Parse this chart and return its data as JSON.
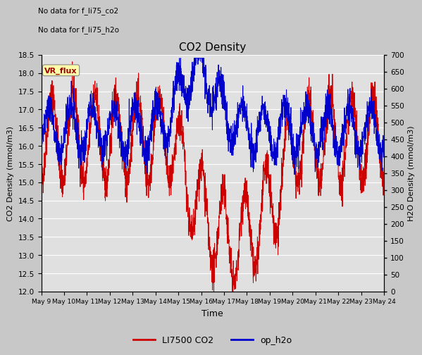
{
  "title": "CO2 Density",
  "xlabel": "Time",
  "ylabel_left": "CO2 Density (mmol/m3)",
  "ylabel_right": "H2O Density (mmol/m3)",
  "text_no_data_1": "No data for f_li75_co2",
  "text_no_data_2": "No data for f_li75_h2o",
  "vr_flux_label": "VR_flux",
  "ylim_left": [
    12.0,
    18.5
  ],
  "ylim_right": [
    0,
    700
  ],
  "yticks_left": [
    12.0,
    12.5,
    13.0,
    13.5,
    14.0,
    14.5,
    15.0,
    15.5,
    16.0,
    16.5,
    17.0,
    17.5,
    18.0,
    18.5
  ],
  "yticks_right": [
    0,
    50,
    100,
    150,
    200,
    250,
    300,
    350,
    400,
    450,
    500,
    550,
    600,
    650,
    700
  ],
  "xtick_labels": [
    "May 9",
    "May 10",
    "May 11",
    "May 12",
    "May 13",
    "May 14",
    "May 15",
    "May 16",
    "May 17",
    "May 18",
    "May 19",
    "May 20",
    "May 21",
    "May 22",
    "May 23",
    "May 24"
  ],
  "color_co2": "#cc0000",
  "color_h2o": "#0000cc",
  "legend_co2": "LI7500 CO2",
  "legend_h2o": "op_h2o",
  "fig_facecolor": "#c8c8c8",
  "plot_facecolor": "#e0e0e0",
  "grid_color": "#ffffff"
}
